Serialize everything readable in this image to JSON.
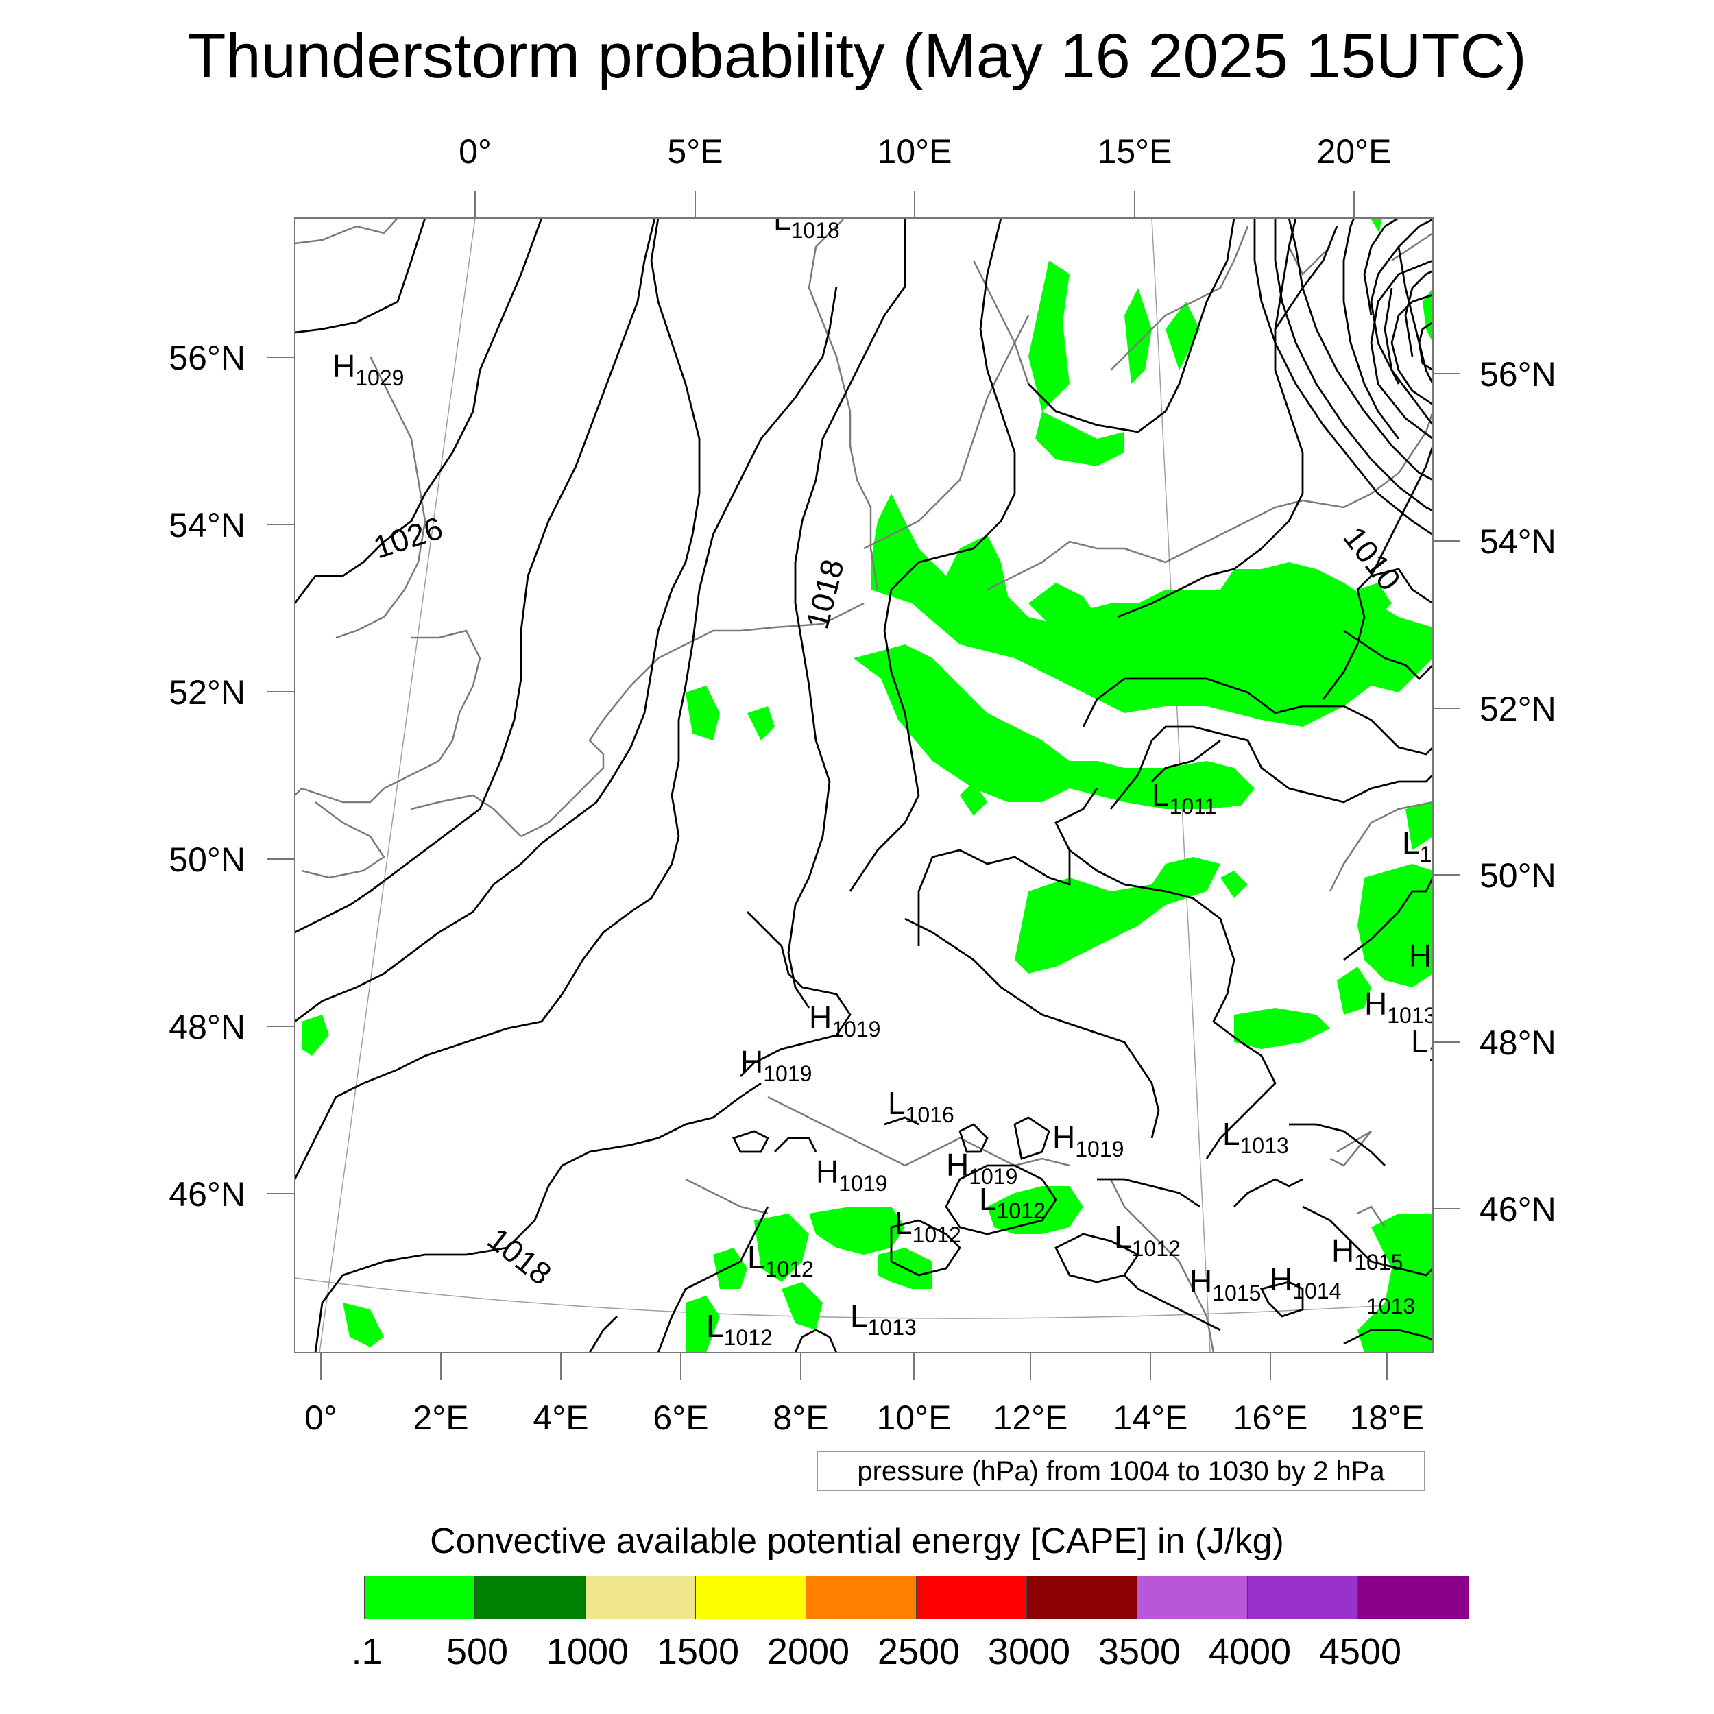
{
  "title": "Thunderstorm probability (May 16 2025 15UTC)",
  "map": {
    "top_axis_labels": [
      "0°",
      "5°E",
      "10°E",
      "15°E",
      "20°E"
    ],
    "bottom_axis_labels": [
      "0°",
      "2°E",
      "4°E",
      "6°E",
      "8°E",
      "10°E",
      "12°E",
      "14°E",
      "16°E",
      "18°E"
    ],
    "left_axis_labels": [
      "56°N",
      "54°N",
      "52°N",
      "50°N",
      "48°N",
      "46°N"
    ],
    "right_axis_labels": [
      "56°N",
      "54°N",
      "52°N",
      "50°N",
      "48°N",
      "46°N"
    ],
    "contour_labels": [
      "1026",
      "1018",
      "1018",
      "1010"
    ],
    "pressure_centers": [
      {
        "type": "H",
        "value": "1029"
      },
      {
        "type": "L",
        "value": "1018"
      },
      {
        "type": "L",
        "value": "1011"
      },
      {
        "type": "L",
        "value": "1"
      },
      {
        "type": "H",
        "value": ""
      },
      {
        "type": "H",
        "value": "1013"
      },
      {
        "type": "L",
        "value": "1"
      },
      {
        "type": "H",
        "value": "1019"
      },
      {
        "type": "H",
        "value": "1019"
      },
      {
        "type": "L",
        "value": "1016"
      },
      {
        "type": "H",
        "value": "1019"
      },
      {
        "type": "L",
        "value": "1013"
      },
      {
        "type": "H",
        "value": "1019"
      },
      {
        "type": "H",
        "value": "1019"
      },
      {
        "type": "L",
        "value": "1012"
      },
      {
        "type": "L",
        "value": "1012"
      },
      {
        "type": "L",
        "value": "1012"
      },
      {
        "type": "L",
        "value": "1012"
      },
      {
        "type": "H",
        "value": "1015"
      },
      {
        "type": "H",
        "value": "1015"
      },
      {
        "type": "H",
        "value": "1014"
      },
      {
        "type": "",
        "value": "1013"
      },
      {
        "type": "L",
        "value": "1013"
      },
      {
        "type": "L",
        "value": "1012"
      }
    ],
    "colors": {
      "cape_green": "#00ff00",
      "contour": "#000000",
      "coast": "#7a7a7a",
      "grid": "#a0a0a0"
    }
  },
  "contour_note": "pressure (hPa) from 1004 to 1030 by 2 hPa",
  "colorbar": {
    "label": "Convective available potential energy [CAPE] in (J/kg)",
    "colors": [
      "#ffffff",
      "#00ff00",
      "#008000",
      "#f0e68c",
      "#ffff00",
      "#ff8000",
      "#ff0000",
      "#8b0000",
      "#b857d8",
      "#9932cc",
      "#8b008b"
    ],
    "ticks": [
      ".1",
      "500",
      "1000",
      "1500",
      "2000",
      "2500",
      "3000",
      "3500",
      "4000",
      "4500"
    ]
  }
}
